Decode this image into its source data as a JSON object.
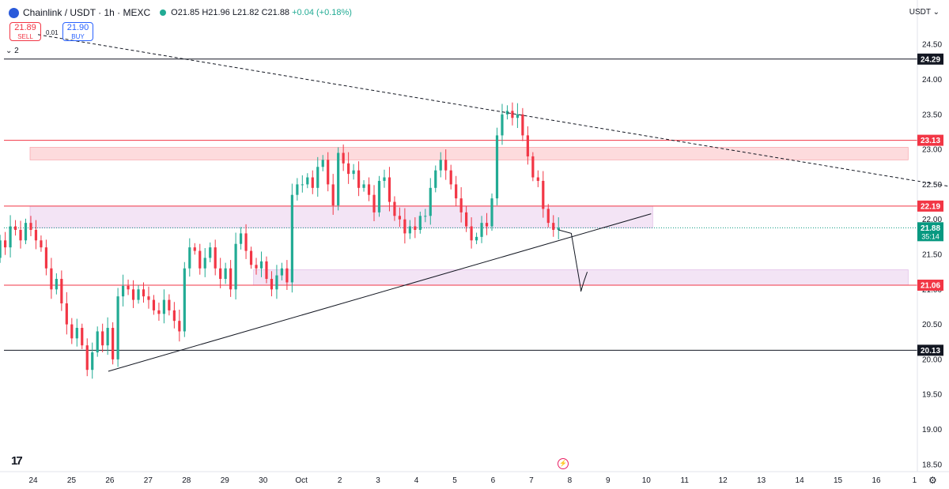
{
  "header": {
    "symbol": "Chainlink / USDT · 1h · MEXC",
    "ohlc_open": "O21.85",
    "ohlc_high": "H21.96",
    "ohlc_low": "L21.82",
    "ohlc_close": "C21.88",
    "ohlc_change": "+0.04 (+0.18%)"
  },
  "trade": {
    "sell_price": "21.89",
    "sell_label": "SELL",
    "spread": "0.01",
    "buy_price": "21.90",
    "buy_label": "BUY"
  },
  "layers_label": "2",
  "currency": "USDT",
  "countdown": "35:14",
  "colors": {
    "up": "#22ab94",
    "down": "#f23645",
    "zone_red": "#f23645",
    "zone_purple": "#ba68c8"
  },
  "icons": [
    "tradingview-logo-icon",
    "flash-icon",
    "settings-icon",
    "chevron-down-icon"
  ],
  "chart_data": {
    "type": "candlestick",
    "y_range": [
      18.4,
      24.75
    ],
    "x_range_hours": [
      -40,
      1400
    ],
    "y_ticks": [
      "18.50",
      "19.00",
      "19.50",
      "20.00",
      "20.50",
      "21.00",
      "21.50",
      "22.00",
      "22.50",
      "23.00",
      "23.50",
      "24.00",
      "24.50"
    ],
    "x_ticks": [
      {
        "label": "24",
        "t": 0
      },
      {
        "label": "25",
        "t": 24
      },
      {
        "label": "26",
        "t": 48
      },
      {
        "label": "27",
        "t": 72
      },
      {
        "label": "28",
        "t": 96
      },
      {
        "label": "29",
        "t": 120
      },
      {
        "label": "30",
        "t": 144
      },
      {
        "label": "Oct",
        "t": 168
      },
      {
        "label": "2",
        "t": 192
      },
      {
        "label": "3",
        "t": 216
      },
      {
        "label": "4",
        "t": 240
      },
      {
        "label": "5",
        "t": 264
      },
      {
        "label": "6",
        "t": 288
      },
      {
        "label": "7",
        "t": 312
      },
      {
        "label": "8",
        "t": 336
      },
      {
        "label": "9",
        "t": 360
      },
      {
        "label": "10",
        "t": 384
      },
      {
        "label": "11",
        "t": 408
      },
      {
        "label": "12",
        "t": 432
      },
      {
        "label": "13",
        "t": 456
      },
      {
        "label": "14",
        "t": 480
      },
      {
        "label": "15",
        "t": 504
      },
      {
        "label": "16",
        "t": 528
      },
      {
        "label": "1",
        "t": 552
      }
    ],
    "horizontal_lines": [
      {
        "price": 24.29,
        "label": "24.29",
        "color": "#131722"
      },
      {
        "price": 23.13,
        "label": "23.13",
        "color": "#f23645"
      },
      {
        "price": 22.19,
        "label": "22.19",
        "color": "#f23645"
      },
      {
        "price": 21.06,
        "label": "21.06",
        "color": "#f23645"
      },
      {
        "price": 20.13,
        "label": "20.13",
        "color": "#131722"
      }
    ],
    "current_price": {
      "price": 21.88,
      "label": "21.88"
    },
    "zones": [
      {
        "t1": -2,
        "t2": 548,
        "p1": 22.85,
        "p2": 23.03,
        "color": "#f23645"
      },
      {
        "t1": -2,
        "t2": 388,
        "p1": 21.88,
        "p2": 22.19,
        "color": "#ba68c8"
      },
      {
        "t1": 138,
        "t2": 548,
        "p1": 21.06,
        "p2": 21.28,
        "color": "#ba68c8"
      }
    ],
    "trendlines": [
      {
        "t1": 47,
        "p1": 19.83,
        "t2": 387,
        "p2": 22.08,
        "style": "solid"
      },
      {
        "t1": 3,
        "p1": 24.64,
        "t2": 590,
        "p2": 22.41,
        "style": "dashed"
      }
    ],
    "projection": [
      [
        329,
        21.85
      ],
      [
        337,
        21.8
      ],
      [
        343,
        21.0
      ],
      [
        343,
        20.97
      ],
      [
        345,
        21.12
      ],
      [
        347,
        21.25
      ]
    ],
    "candles_close": [
      21.95,
      21.9,
      21.7,
      22.0,
      21.8,
      21.45,
      21.7,
      21.6,
      21.9,
      21.85,
      21.7,
      21.95,
      21.85,
      21.7,
      21.6,
      21.3,
      21.0,
      21.15,
      20.8,
      20.5,
      20.3,
      20.45,
      20.2,
      19.85,
      20.1,
      20.4,
      20.2,
      20.45,
      20.0,
      20.9,
      21.05,
      21.0,
      20.85,
      21.0,
      20.9,
      20.85,
      20.7,
      20.65,
      20.85,
      20.7,
      20.55,
      20.4,
      21.3,
      21.6,
      21.55,
      21.3,
      21.45,
      21.6,
      21.3,
      21.15,
      21.3,
      21.0,
      21.65,
      21.8,
      21.55,
      21.35,
      21.3,
      21.4,
      21.15,
      21.0,
      21.2,
      21.3,
      21.1,
      22.35,
      22.5,
      22.5,
      22.6,
      22.45,
      22.75,
      22.85,
      22.5,
      22.2,
      22.95,
      22.8,
      22.65,
      22.7,
      22.45,
      22.5,
      22.35,
      22.1,
      22.55,
      22.6,
      22.25,
      22.05,
      22.0,
      21.8,
      21.9,
      21.85,
      22.05,
      22.05,
      22.45,
      22.7,
      22.85,
      22.7,
      22.5,
      22.3,
      22.1,
      21.9,
      21.7,
      21.75,
      21.95,
      21.9,
      22.3,
      23.2,
      23.5,
      23.55,
      23.45,
      23.5,
      23.2,
      22.9,
      22.6,
      22.55,
      22.15,
      21.95,
      21.85,
      21.88
    ]
  }
}
